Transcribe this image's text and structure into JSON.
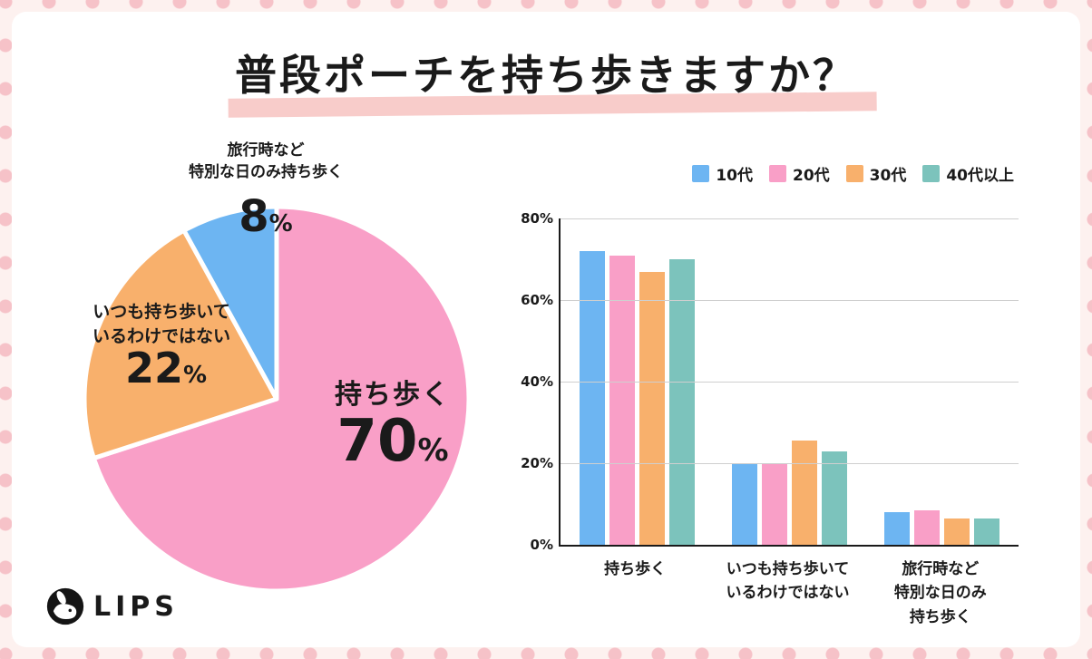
{
  "title": "普段ポーチを持ち歩きますか？",
  "percent_sign": "%",
  "logo": {
    "brand": "LIPS"
  },
  "chart_data": [
    {
      "type": "pie",
      "slices": [
        {
          "label": "持ち歩く",
          "value": 70,
          "display": "70",
          "color": "#F99FC7"
        },
        {
          "label": "いつも持ち歩いて\nいるわけではない",
          "value": 22,
          "display": "22",
          "color": "#F8B06C"
        },
        {
          "label": "旅行時など\n特別な日のみ持ち歩く",
          "value": 8,
          "display": "8",
          "color": "#6DB5F2"
        }
      ]
    },
    {
      "type": "bar",
      "categories": [
        "持ち歩く",
        "いつも持ち歩いて\nいるわけではない",
        "旅行時など\n特別な日のみ\n持ち歩く"
      ],
      "series": [
        {
          "name": "10代",
          "color": "#6DB5F2",
          "values": [
            72,
            20,
            8
          ]
        },
        {
          "name": "20代",
          "color": "#F99FC7",
          "values": [
            71,
            20,
            8.5
          ]
        },
        {
          "name": "30代",
          "color": "#F8B06C",
          "values": [
            67,
            25.5,
            6.5
          ]
        },
        {
          "name": "40代以上",
          "color": "#7CC3BC",
          "values": [
            70,
            23,
            6.5
          ]
        }
      ],
      "ylim": [
        0,
        80
      ],
      "yticks": [
        "0%",
        "20%",
        "40%",
        "60%",
        "80%"
      ],
      "grid": true,
      "legend_position": "top-right"
    }
  ]
}
